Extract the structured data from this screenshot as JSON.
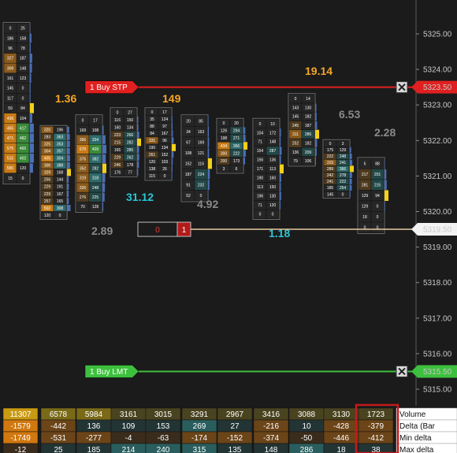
{
  "chart_data": {
    "type": "table",
    "title": "",
    "price_axis": {
      "min": 5315.0,
      "max": 5325.5,
      "ticks": [
        "5325.00",
        "5324.00",
        "5323.00",
        "5322.00",
        "5321.00",
        "5320.00",
        "5319.00",
        "5318.00",
        "5317.00",
        "5316.00",
        "5315.00"
      ]
    },
    "orders": [
      {
        "label": "1  Buy STP",
        "price": 5323.5,
        "price_tag": "5323.50",
        "color": "#e02020"
      },
      {
        "label": "1  Buy LMT",
        "price": 5315.5,
        "price_tag": "5315.50",
        "color": "#3dc03d"
      }
    ],
    "current_price": {
      "price": 5319.5,
      "price_tag": "5319.50"
    },
    "position_box": {
      "left_value": "0",
      "right_value": "1"
    },
    "bar_stats": [
      {
        "text": "1.36",
        "color": "#f5a623"
      },
      {
        "text": "149",
        "color": "#f5a623"
      },
      {
        "text": "19.14",
        "color": "#f5a623"
      },
      {
        "text": "31.12",
        "color": "#29c7d6"
      },
      {
        "text": "1.18",
        "color": "#29c7d6"
      },
      {
        "text": "2.89",
        "color": "#8a8a8a"
      },
      {
        "text": "4.92",
        "color": "#8a8a8a"
      },
      {
        "text": "6.53",
        "color": "#8a8a8a"
      },
      {
        "text": "2.28",
        "color": "#8a8a8a"
      }
    ],
    "candles": [
      {
        "high": 5325.3,
        "low": 5320.8,
        "cells": [
          [
            "0",
            "25"
          ],
          [
            "186",
            "158"
          ],
          [
            "96",
            "78"
          ],
          [
            "327",
            "187"
          ],
          [
            "309",
            "148"
          ],
          [
            "161",
            "123"
          ],
          [
            "145",
            "0"
          ],
          [
            "117",
            "0"
          ],
          [
            "59",
            "84"
          ],
          [
            "436",
            "104"
          ],
          [
            "465",
            "417"
          ],
          [
            "471",
            "482"
          ],
          [
            "575",
            "465"
          ],
          [
            "515",
            "402"
          ],
          [
            "580",
            "120"
          ],
          [
            "15",
            "0"
          ]
        ]
      },
      {
        "high": 5322.4,
        "low": 5319.8,
        "cells": [
          [
            "320",
            "196"
          ],
          [
            "283",
            "363"
          ],
          [
            "325",
            "353"
          ],
          [
            "304",
            "357"
          ],
          [
            "405",
            "304"
          ],
          [
            "306",
            "388"
          ],
          [
            "329",
            "168"
          ],
          [
            "256",
            "144"
          ],
          [
            "229",
            "191"
          ],
          [
            "229",
            "167"
          ],
          [
            "257",
            "165"
          ],
          [
            "502",
            "308"
          ],
          [
            "120",
            "0"
          ]
        ]
      },
      {
        "high": 5322.7,
        "low": 5320.0,
        "cells": [
          [
            "0",
            "17"
          ],
          [
            "169",
            "108"
          ],
          [
            "366",
            "334"
          ],
          [
            "679",
            "409"
          ],
          [
            "376",
            "382"
          ],
          [
            "352",
            "282"
          ],
          [
            "319",
            "318"
          ],
          [
            "326",
            "248"
          ],
          [
            "276",
            "225"
          ],
          [
            "70",
            "128"
          ]
        ]
      },
      {
        "high": 5322.9,
        "low": 5321.0,
        "cells": [
          [
            "0",
            "27"
          ],
          [
            "116",
            "150"
          ],
          [
            "160",
            "134"
          ],
          [
            "223",
            "266"
          ],
          [
            "215",
            "282"
          ],
          [
            "165",
            "285"
          ],
          [
            "229",
            "262"
          ],
          [
            "246",
            "178"
          ],
          [
            "176",
            "77"
          ]
        ]
      },
      {
        "high": 5322.9,
        "low": 5320.9,
        "cells": [
          [
            "0",
            "17"
          ],
          [
            "35",
            "124"
          ],
          [
            "88",
            "97"
          ],
          [
            "84",
            "167"
          ],
          [
            "331",
            "96"
          ],
          [
            "190",
            "134"
          ],
          [
            "261",
            "152"
          ],
          [
            "120",
            "103"
          ],
          [
            "138",
            "26"
          ],
          [
            "115",
            "0"
          ]
        ]
      },
      {
        "high": 5322.7,
        "low": 5320.3,
        "cells": [
          [
            "20",
            "85"
          ],
          [
            "34",
            "163"
          ],
          [
            "67",
            "169"
          ],
          [
            "108",
            "121"
          ],
          [
            "152",
            "116"
          ],
          [
            "187",
            "224"
          ],
          [
            "91",
            "232"
          ],
          [
            "52",
            "0"
          ]
        ]
      },
      {
        "high": 5322.6,
        "low": 5321.1,
        "cells": [
          [
            "0",
            "20"
          ],
          [
            "126",
            "294"
          ],
          [
            "198",
            "271"
          ],
          [
            "434",
            "356"
          ],
          [
            "300",
            "222"
          ],
          [
            "200",
            "173"
          ],
          [
            "3",
            "6"
          ]
        ]
      },
      {
        "high": 5322.6,
        "low": 5319.8,
        "cells": [
          [
            "0",
            "10"
          ],
          [
            "104",
            "172"
          ],
          [
            "71",
            "148"
          ],
          [
            "154",
            "287"
          ],
          [
            "156",
            "136"
          ],
          [
            "171",
            "113"
          ],
          [
            "190",
            "160"
          ],
          [
            "113",
            "150"
          ],
          [
            "196",
            "130"
          ],
          [
            "71",
            "120"
          ],
          [
            "0",
            "0"
          ]
        ]
      },
      {
        "high": 5323.3,
        "low": 5321.3,
        "cells": [
          [
            "0",
            "14"
          ],
          [
            "143",
            "130"
          ],
          [
            "145",
            "182"
          ],
          [
            "245",
            "187"
          ],
          [
            "311",
            "286"
          ],
          [
            "252",
            "182"
          ],
          [
            "136",
            "209"
          ],
          [
            "79",
            "106"
          ]
        ]
      },
      {
        "high": 5322.0,
        "low": 5320.4,
        "cells": [
          [
            "0",
            "3"
          ],
          [
            "175",
            "129"
          ],
          [
            "222",
            "248"
          ],
          [
            "315",
            "241"
          ],
          [
            "289",
            "366"
          ],
          [
            "242",
            "278"
          ],
          [
            "241",
            "222"
          ],
          [
            "185",
            "254"
          ],
          [
            "145",
            "0"
          ]
        ]
      },
      {
        "high": 5321.5,
        "low": 5319.4,
        "cells": [
          [
            "5",
            "88"
          ],
          [
            "217",
            "201"
          ],
          [
            "281",
            "215"
          ],
          [
            "129",
            "94"
          ],
          [
            "129",
            "0"
          ],
          [
            "18",
            "0"
          ],
          [
            "0",
            "0"
          ]
        ]
      }
    ],
    "summary": {
      "rows": [
        {
          "label": "Volume",
          "values": [
            11307,
            6578,
            5984,
            3161,
            3015,
            3291,
            2967,
            3416,
            3088,
            3130,
            1723
          ]
        },
        {
          "label": "Delta (Bar",
          "values": [
            -1579,
            -442,
            136,
            109,
            153,
            269,
            27,
            -216,
            10,
            -428,
            -379
          ]
        },
        {
          "label": "Min delta",
          "values": [
            -1749,
            -531,
            -277,
            -4,
            -63,
            -174,
            -152,
            -374,
            -50,
            -446,
            -412
          ]
        },
        {
          "label": "Max delta",
          "values": [
            -12,
            25,
            185,
            214,
            240,
            315,
            135,
            148,
            286,
            18,
            38
          ]
        }
      ]
    },
    "icons": {
      "close": "close-x-icon"
    }
  }
}
